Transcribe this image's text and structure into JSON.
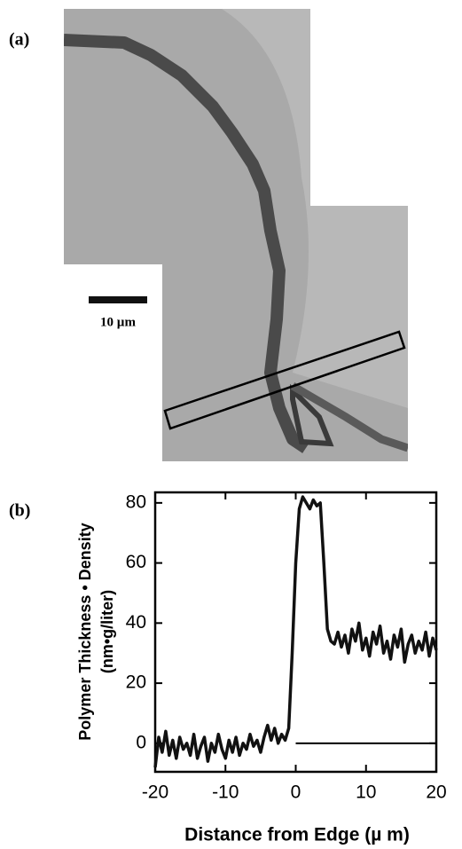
{
  "figure": {
    "panel_a_label": "(a)",
    "scale_bar_label": "10 µm"
  },
  "chart_data": {
    "type": "line",
    "panel_label": "(b)",
    "x_label": "Distance from Edge (µ m)",
    "y_label": "Polymer Thickness • Density",
    "y_label_units": "(nm•g/liter)",
    "x": [
      -20,
      -19.5,
      -19,
      -18.5,
      -18,
      -17.5,
      -17,
      -16.5,
      -16,
      -15.5,
      -15,
      -14.5,
      -14,
      -13.5,
      -13,
      -12.5,
      -12,
      -11.5,
      -11,
      -10.5,
      -10,
      -9.5,
      -9,
      -8.5,
      -8,
      -7.5,
      -7,
      -6.5,
      -6,
      -5.5,
      -5,
      -4.5,
      -4,
      -3.5,
      -3,
      -2.5,
      -2,
      -1.5,
      -1,
      -0.5,
      0,
      0.5,
      1,
      1.5,
      2,
      2.5,
      3,
      3.5,
      4,
      4.5,
      5,
      5.5,
      6,
      6.5,
      7,
      7.5,
      8,
      8.5,
      9,
      9.5,
      10,
      10.5,
      11,
      11.5,
      12,
      12.5,
      13,
      13.5,
      14,
      14.5,
      15,
      15.5,
      16,
      16.5,
      17,
      17.5,
      18,
      18.5,
      19,
      19.5,
      20
    ],
    "values": [
      -8,
      2,
      -3,
      4,
      -4,
      1,
      -5,
      2,
      -2,
      0,
      -4,
      3,
      -5,
      -1,
      2,
      -6,
      0,
      -3,
      3,
      -2,
      -5,
      1,
      -3,
      2,
      -4,
      0,
      -2,
      3,
      -1,
      1,
      -3,
      2,
      6,
      1,
      5,
      0,
      3,
      1,
      5,
      30,
      60,
      78,
      82,
      80,
      78,
      81,
      79,
      80,
      60,
      38,
      34,
      33,
      37,
      32,
      36,
      30,
      38,
      34,
      40,
      31,
      35,
      29,
      37,
      33,
      39,
      30,
      34,
      28,
      36,
      32,
      38,
      27,
      33,
      36,
      30,
      34,
      31,
      37,
      29,
      35,
      31
    ],
    "color": "#111111",
    "reference_line": 0,
    "xlim": [
      -20,
      20
    ],
    "xticks": [
      -20,
      -10,
      0,
      10,
      20
    ],
    "ylim": [
      -9.5,
      83.5
    ],
    "yticks": [
      0,
      20,
      40,
      60,
      80
    ]
  }
}
